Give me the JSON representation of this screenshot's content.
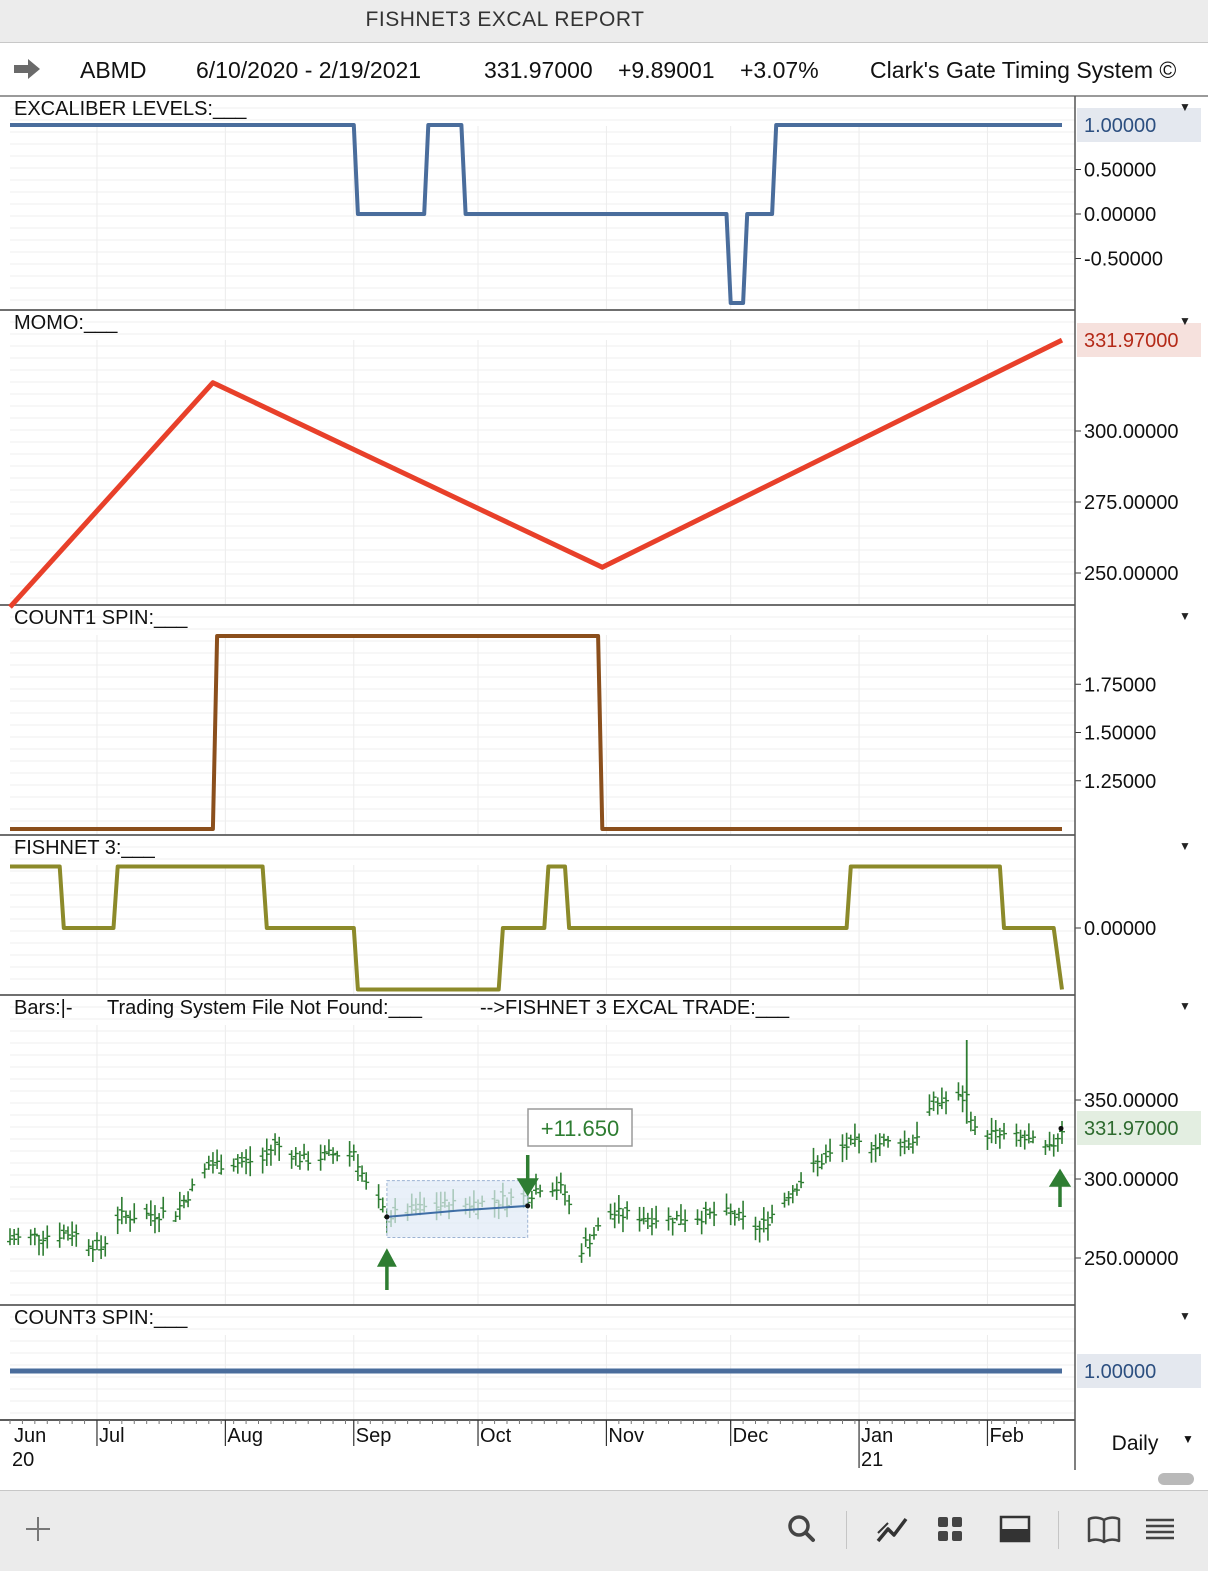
{
  "window": {
    "title": "FISHNET3 EXCAL REPORT"
  },
  "header": {
    "symbol": "ABMD",
    "date_range": "6/10/2020 - 2/19/2021",
    "last_price": "331.97000",
    "change": "+9.89001",
    "change_pct": "+3.07%",
    "vendor": "Clark's Gate Timing System ©"
  },
  "panels": {
    "excaliber": {
      "title": "EXCALIBER LEVELS:___",
      "color": "#4a6d9c",
      "ticks": [
        "0.50000",
        "0.00000",
        "-0.50000"
      ],
      "last_value": "1.00000"
    },
    "momo": {
      "title": "MOMO:___",
      "color": "#e8402a",
      "ticks": [
        "300.00000",
        "275.00000",
        "250.00000"
      ],
      "last_value": "331.97000"
    },
    "count1": {
      "title": "COUNT1 SPIN:___",
      "color": "#8b4f1c",
      "ticks": [
        "1.75000",
        "1.50000",
        "1.25000"
      ]
    },
    "fishnet": {
      "title": "FISHNET 3:___",
      "color": "#8c8a2a",
      "ticks": [
        "0.00000"
      ]
    },
    "bars": {
      "title_bars": "Bars:|-",
      "title_system": "Trading System File Not Found:___",
      "title_trade": "-->FISHNET 3 EXCAL TRADE:___",
      "bar_color": "#2e7d32",
      "ticks": [
        "350.00000",
        "300.00000",
        "250.00000"
      ],
      "last_value": "331.97000",
      "trade_label": "+11.650"
    },
    "count3": {
      "title": "COUNT3 SPIN:___",
      "color": "#4a6d9c",
      "last_value": "1.00000"
    }
  },
  "x_axis": {
    "months": [
      "Jun",
      "Jul",
      "Aug",
      "Sep",
      "Oct",
      "Nov",
      "Dec",
      "Jan",
      "Feb"
    ],
    "years": [
      "20",
      "21"
    ]
  },
  "timeframe": "Daily",
  "chart_data": {
    "type": "line",
    "x_range": [
      "2020-06-10",
      "2021-02-19"
    ],
    "x_tick_labels": [
      "Jun 20",
      "Jul",
      "Aug",
      "Sep",
      "Oct",
      "Nov",
      "Dec",
      "Jan 21",
      "Feb"
    ],
    "panels": [
      {
        "name": "EXCALIBER LEVELS",
        "ylim": [
          -1,
          1
        ],
        "x": [
          "2020-06-10",
          "2020-09-01",
          "2020-09-02",
          "2020-09-18",
          "2020-09-19",
          "2020-09-27",
          "2020-09-28",
          "2020-11-30",
          "2020-12-01",
          "2020-12-04",
          "2020-12-05",
          "2020-12-11",
          "2020-12-12",
          "2021-02-18",
          "2021-02-19"
        ],
        "values": [
          1,
          1,
          0,
          0,
          1,
          1,
          0,
          0,
          -1,
          -1,
          0,
          0,
          1,
          1,
          1
        ]
      },
      {
        "name": "MOMO",
        "ylim": [
          240,
          332
        ],
        "x": [
          "2020-06-10",
          "2020-07-29",
          "2020-10-31",
          "2021-02-19"
        ],
        "values": [
          238,
          317,
          252,
          332
        ]
      },
      {
        "name": "COUNT1 SPIN",
        "ylim": [
          1,
          2
        ],
        "x": [
          "2020-06-10",
          "2020-07-29",
          "2020-07-30",
          "2020-10-30",
          "2020-10-31",
          "2021-02-19"
        ],
        "values": [
          1,
          1,
          2,
          2,
          1,
          1
        ]
      },
      {
        "name": "FISHNET 3",
        "ylim": [
          -1,
          1
        ],
        "x": [
          "2020-06-10",
          "2020-06-22",
          "2020-06-23",
          "2020-07-05",
          "2020-07-06",
          "2020-08-10",
          "2020-08-11",
          "2020-09-01",
          "2020-09-02",
          "2020-10-06",
          "2020-10-07",
          "2020-10-17",
          "2020-10-18",
          "2020-10-22",
          "2020-10-23",
          "2020-12-29",
          "2020-12-30",
          "2021-02-04",
          "2021-02-05",
          "2021-02-17",
          "2021-02-19"
        ],
        "values": [
          1,
          1,
          0,
          0,
          1,
          1,
          0,
          0,
          -1,
          -1,
          0,
          0,
          1,
          1,
          0,
          0,
          1,
          1,
          0,
          0,
          -1
        ]
      },
      {
        "name": "Bars",
        "ylim": [
          220,
          390
        ],
        "trade": {
          "entry": "2020-09-09",
          "exit": "2020-10-13",
          "gain": 11.65
        }
      },
      {
        "name": "COUNT3 SPIN",
        "ylim": [
          0,
          2
        ],
        "x": [
          "2020-06-10",
          "2021-02-19"
        ],
        "values": [
          1,
          1
        ]
      }
    ]
  }
}
